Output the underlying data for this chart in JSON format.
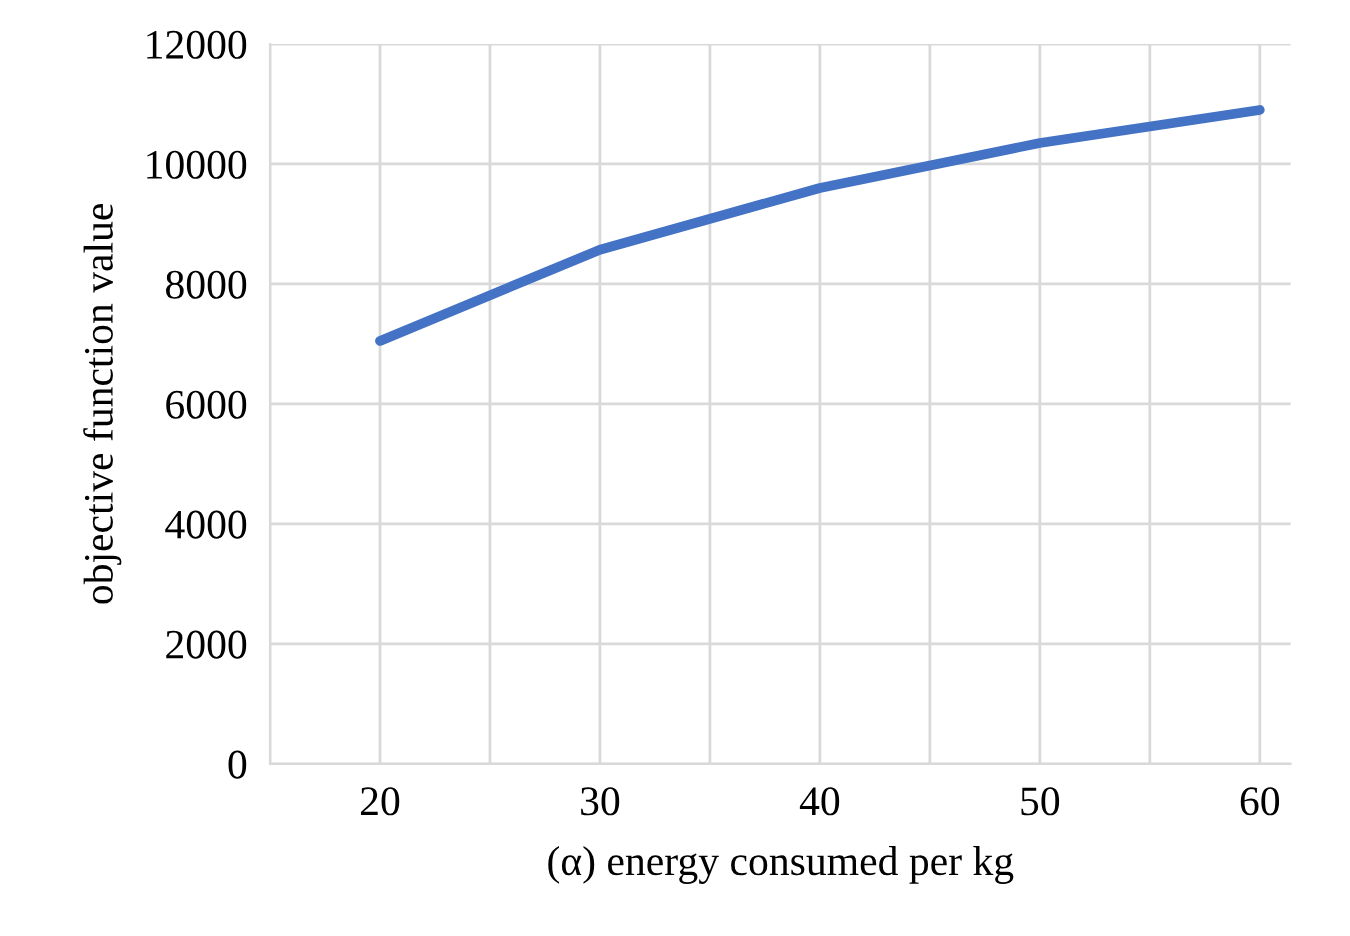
{
  "chart_data": {
    "type": "line",
    "xlabel": "(α) energy consumed per kg",
    "ylabel": "objective function value",
    "x": [
      20,
      30,
      40,
      50,
      60
    ],
    "series": [
      {
        "color": "#4472c4",
        "values": [
          7050,
          8570,
          9600,
          10350,
          10900
        ]
      }
    ],
    "xlim": [
      15,
      61.4
    ],
    "xticks": [
      {
        "value": 15,
        "label": null
      },
      20,
      {
        "value": 25,
        "label": null
      },
      30,
      {
        "value": 35,
        "label": null
      },
      40,
      {
        "value": 45,
        "label": null
      },
      50,
      {
        "value": 55,
        "label": null
      },
      60
    ],
    "ylim": [
      0,
      12000
    ],
    "yticks": [
      0,
      2000,
      4000,
      6000,
      8000,
      10000,
      12000
    ],
    "grid": true,
    "marker": "none",
    "line_style": "solid"
  }
}
